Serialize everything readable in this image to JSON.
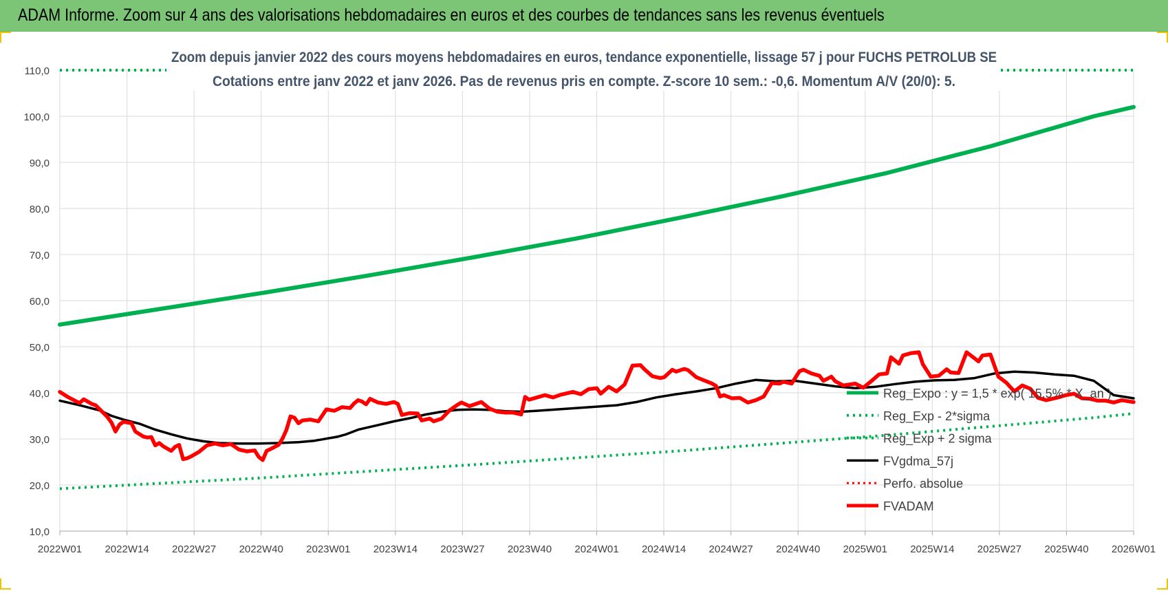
{
  "header": {
    "title": "ADAM Informe. Zoom sur 4 ans des valorisations hebdomadaires en euros et des courbes de tendances sans les revenus éventuels"
  },
  "colors": {
    "header_bg": "#7cc576",
    "reg_expo": "#00b050",
    "fvgdma": "#000000",
    "fvadam": "#ff0000",
    "perfo": "#ff0000",
    "grid": "#d9d9d9",
    "axis_text": "#404040",
    "title_text": "#44546a"
  },
  "chart_data": {
    "type": "line",
    "title": "Zoom depuis janvier 2022 des cours moyens hebdomadaires en euros, tendance exponentielle, lissage 57 j pour FUCHS PETROLUB SE",
    "subtitle": "Cotations entre janv 2022 et janv 2026. Pas de revenus pris en compte. Z-score 10 sem.: -0,6. Momentum A/V (20/0): 5.",
    "xlabel": "",
    "ylabel": "",
    "ylim": [
      10,
      110
    ],
    "yticks": [
      "10,0",
      "20,0",
      "30,0",
      "40,0",
      "50,0",
      "60,0",
      "70,0",
      "80,0",
      "90,0",
      "100,0",
      "110,0"
    ],
    "x_tick_labels": [
      "2022W01",
      "2022W14",
      "2022W27",
      "2022W40",
      "2023W01",
      "2023W14",
      "2023W27",
      "2023W40",
      "2024W01",
      "2024W14",
      "2024W27",
      "2024W40",
      "2025W01",
      "2025W14",
      "2025W27",
      "2025W40",
      "2026W01"
    ],
    "legend_position": "lower-right",
    "series": [
      {
        "name": "Reg_Expo : y = 1,5 * exp( 15,5% * X_an )",
        "style": "solid-thick",
        "points": [
          [
            0,
            54.8
          ],
          [
            26,
            58.3
          ],
          [
            52,
            61.8
          ],
          [
            78,
            65.5
          ],
          [
            104,
            69.4
          ],
          [
            130,
            73.5
          ],
          [
            156,
            78.0
          ],
          [
            182,
            82.7
          ],
          [
            208,
            87.7
          ],
          [
            234,
            93.5
          ],
          [
            260,
            100.0
          ],
          [
            270,
            102.0
          ]
        ]
      },
      {
        "name": "Reg_Exp - 2*sigma",
        "style": "dotted",
        "points": [
          [
            0,
            19.2
          ],
          [
            52,
            21.6
          ],
          [
            104,
            24.4
          ],
          [
            156,
            27.4
          ],
          [
            208,
            30.8
          ],
          [
            260,
            34.6
          ],
          [
            270,
            35.5
          ]
        ]
      },
      {
        "name": "Reg_Exp + 2 sigma",
        "style": "dotted",
        "points": [
          [
            0,
            110
          ],
          [
            26,
            110
          ],
          [
            243,
            110
          ],
          [
            270,
            110
          ]
        ]
      },
      {
        "name": "FVgdma_57j",
        "style": "solid",
        "points": [
          [
            0,
            38.3
          ],
          [
            5,
            37.3
          ],
          [
            10,
            36.2
          ],
          [
            13,
            35.0
          ],
          [
            16,
            34.2
          ],
          [
            20,
            33.3
          ],
          [
            24,
            32.0
          ],
          [
            28,
            31.0
          ],
          [
            32,
            30.1
          ],
          [
            36,
            29.5
          ],
          [
            40,
            29.1
          ],
          [
            45,
            29.0
          ],
          [
            50,
            29.0
          ],
          [
            55,
            29.1
          ],
          [
            60,
            29.3
          ],
          [
            64,
            29.6
          ],
          [
            66,
            29.9
          ],
          [
            70,
            30.5
          ],
          [
            72,
            31.0
          ],
          [
            75,
            32.0
          ],
          [
            80,
            33.0
          ],
          [
            84,
            33.8
          ],
          [
            88,
            34.5
          ],
          [
            92,
            35.3
          ],
          [
            96,
            35.9
          ],
          [
            100,
            36.3
          ],
          [
            104,
            36.4
          ],
          [
            108,
            36.3
          ],
          [
            112,
            36.0
          ],
          [
            116,
            35.9
          ],
          [
            120,
            36.1
          ],
          [
            125,
            36.4
          ],
          [
            130,
            36.7
          ],
          [
            135,
            37.0
          ],
          [
            140,
            37.3
          ],
          [
            145,
            38.0
          ],
          [
            150,
            39.0
          ],
          [
            155,
            39.7
          ],
          [
            160,
            40.3
          ],
          [
            165,
            41.0
          ],
          [
            170,
            42.0
          ],
          [
            175,
            42.8
          ],
          [
            180,
            42.5
          ],
          [
            185,
            42.6
          ],
          [
            190,
            42.0
          ],
          [
            195,
            41.4
          ],
          [
            200,
            41.0
          ],
          [
            205,
            41.3
          ],
          [
            210,
            41.9
          ],
          [
            215,
            42.4
          ],
          [
            220,
            42.7
          ],
          [
            225,
            42.8
          ],
          [
            230,
            43.2
          ],
          [
            235,
            44.2
          ],
          [
            240,
            44.6
          ],
          [
            245,
            44.4
          ],
          [
            250,
            44.0
          ],
          [
            255,
            43.7
          ],
          [
            260,
            42.6
          ],
          [
            265,
            39.5
          ],
          [
            270,
            38.8
          ]
        ]
      },
      {
        "name": "Perfo. absolue",
        "style": "dotted",
        "points": []
      },
      {
        "name": "FVADAM",
        "style": "solid-thick",
        "points": [
          [
            0,
            40.2
          ],
          [
            2,
            39.1
          ],
          [
            4,
            38.2
          ],
          [
            5,
            37.8
          ],
          [
            6,
            38.6
          ],
          [
            8,
            37.6
          ],
          [
            9,
            37.3
          ],
          [
            11,
            35.6
          ],
          [
            12,
            34.7
          ],
          [
            13,
            33.5
          ],
          [
            14,
            31.6
          ],
          [
            15,
            33.1
          ],
          [
            16,
            33.7
          ],
          [
            18,
            33.4
          ],
          [
            19,
            31.6
          ],
          [
            21,
            30.5
          ],
          [
            22,
            30.3
          ],
          [
            23,
            30.4
          ],
          [
            24,
            28.6
          ],
          [
            25,
            29.1
          ],
          [
            26,
            28.4
          ],
          [
            28,
            27.4
          ],
          [
            29,
            28.3
          ],
          [
            30,
            28.7
          ],
          [
            31,
            25.6
          ],
          [
            32,
            25.8
          ],
          [
            33,
            26.2
          ],
          [
            35,
            27.2
          ],
          [
            37,
            28.6
          ],
          [
            39,
            29.0
          ],
          [
            41,
            28.6
          ],
          [
            43,
            28.9
          ],
          [
            45,
            27.7
          ],
          [
            47,
            27.3
          ],
          [
            49,
            27.5
          ],
          [
            50,
            26.1
          ],
          [
            51,
            25.4
          ],
          [
            52,
            27.4
          ],
          [
            53,
            27.8
          ],
          [
            55,
            28.7
          ],
          [
            56,
            30.1
          ],
          [
            57,
            32.0
          ],
          [
            58,
            34.9
          ],
          [
            59,
            34.6
          ],
          [
            60,
            33.4
          ],
          [
            61,
            34.0
          ],
          [
            63,
            34.2
          ],
          [
            65,
            33.8
          ],
          [
            67,
            36.4
          ],
          [
            69,
            36.1
          ],
          [
            71,
            36.9
          ],
          [
            73,
            36.7
          ],
          [
            74,
            37.7
          ],
          [
            75,
            38.4
          ],
          [
            76,
            38.1
          ],
          [
            77,
            37.5
          ],
          [
            78,
            38.7
          ],
          [
            80,
            37.9
          ],
          [
            82,
            37.6
          ],
          [
            84,
            38.0
          ],
          [
            85,
            37.6
          ],
          [
            86,
            35.2
          ],
          [
            88,
            35.6
          ],
          [
            90,
            35.5
          ],
          [
            91,
            34.0
          ],
          [
            93,
            34.4
          ],
          [
            94,
            33.8
          ],
          [
            96,
            34.4
          ],
          [
            98,
            36.2
          ],
          [
            100,
            37.4
          ],
          [
            101,
            37.9
          ],
          [
            103,
            37.1
          ],
          [
            106,
            38.0
          ],
          [
            108,
            36.6
          ],
          [
            110,
            35.9
          ],
          [
            112,
            35.7
          ],
          [
            114,
            35.7
          ],
          [
            116,
            35.3
          ],
          [
            117,
            39.1
          ],
          [
            118,
            38.5
          ],
          [
            120,
            39.0
          ],
          [
            122,
            39.5
          ],
          [
            124,
            39.0
          ],
          [
            126,
            39.6
          ],
          [
            129,
            40.2
          ],
          [
            131,
            39.7
          ],
          [
            133,
            40.8
          ],
          [
            135,
            41.0
          ],
          [
            136,
            39.8
          ],
          [
            138,
            41.3
          ],
          [
            140,
            40.3
          ],
          [
            142,
            41.8
          ],
          [
            144,
            45.9
          ],
          [
            146,
            46.0
          ],
          [
            147,
            45.1
          ],
          [
            149,
            43.6
          ],
          [
            151,
            43.2
          ],
          [
            152,
            43.4
          ],
          [
            154,
            45.0
          ],
          [
            155,
            44.6
          ],
          [
            157,
            45.2
          ],
          [
            158,
            44.9
          ],
          [
            160,
            43.4
          ],
          [
            162,
            42.7
          ],
          [
            164,
            42.0
          ],
          [
            165,
            41.5
          ],
          [
            166,
            39.2
          ],
          [
            167,
            39.5
          ],
          [
            169,
            38.8
          ],
          [
            171,
            38.9
          ],
          [
            173,
            37.9
          ],
          [
            175,
            38.4
          ],
          [
            177,
            39.2
          ],
          [
            179,
            42.1
          ],
          [
            181,
            42.0
          ],
          [
            182,
            42.4
          ],
          [
            184,
            42.0
          ],
          [
            186,
            44.7
          ],
          [
            187,
            45.0
          ],
          [
            189,
            44.2
          ],
          [
            191,
            43.7
          ],
          [
            192,
            42.6
          ],
          [
            194,
            43.5
          ],
          [
            195,
            42.5
          ],
          [
            197,
            41.6
          ],
          [
            200,
            42.0
          ],
          [
            202,
            41.1
          ],
          [
            204,
            42.5
          ],
          [
            206,
            44.0
          ],
          [
            208,
            44.2
          ],
          [
            209,
            47.7
          ],
          [
            211,
            46.3
          ],
          [
            212,
            48.1
          ],
          [
            214,
            48.6
          ],
          [
            216,
            48.8
          ],
          [
            217,
            46.2
          ],
          [
            219,
            43.5
          ],
          [
            221,
            43.7
          ],
          [
            223,
            45.1
          ],
          [
            224,
            44.4
          ],
          [
            226,
            44.3
          ],
          [
            228,
            48.8
          ],
          [
            230,
            47.5
          ],
          [
            231,
            46.8
          ],
          [
            232,
            48.1
          ],
          [
            234,
            48.3
          ],
          [
            236,
            43.5
          ],
          [
            238,
            42.2
          ],
          [
            240,
            40.3
          ],
          [
            242,
            41.6
          ],
          [
            244,
            40.9
          ],
          [
            246,
            38.9
          ],
          [
            248,
            38.4
          ],
          [
            249,
            38.6
          ],
          [
            251,
            39.0
          ],
          [
            253,
            39.5
          ],
          [
            255,
            39.8
          ],
          [
            257,
            38.8
          ],
          [
            259,
            38.7
          ],
          [
            261,
            38.3
          ],
          [
            263,
            38.3
          ],
          [
            265,
            37.9
          ],
          [
            267,
            38.4
          ],
          [
            269,
            38.1
          ],
          [
            270,
            38.0
          ]
        ]
      }
    ]
  }
}
